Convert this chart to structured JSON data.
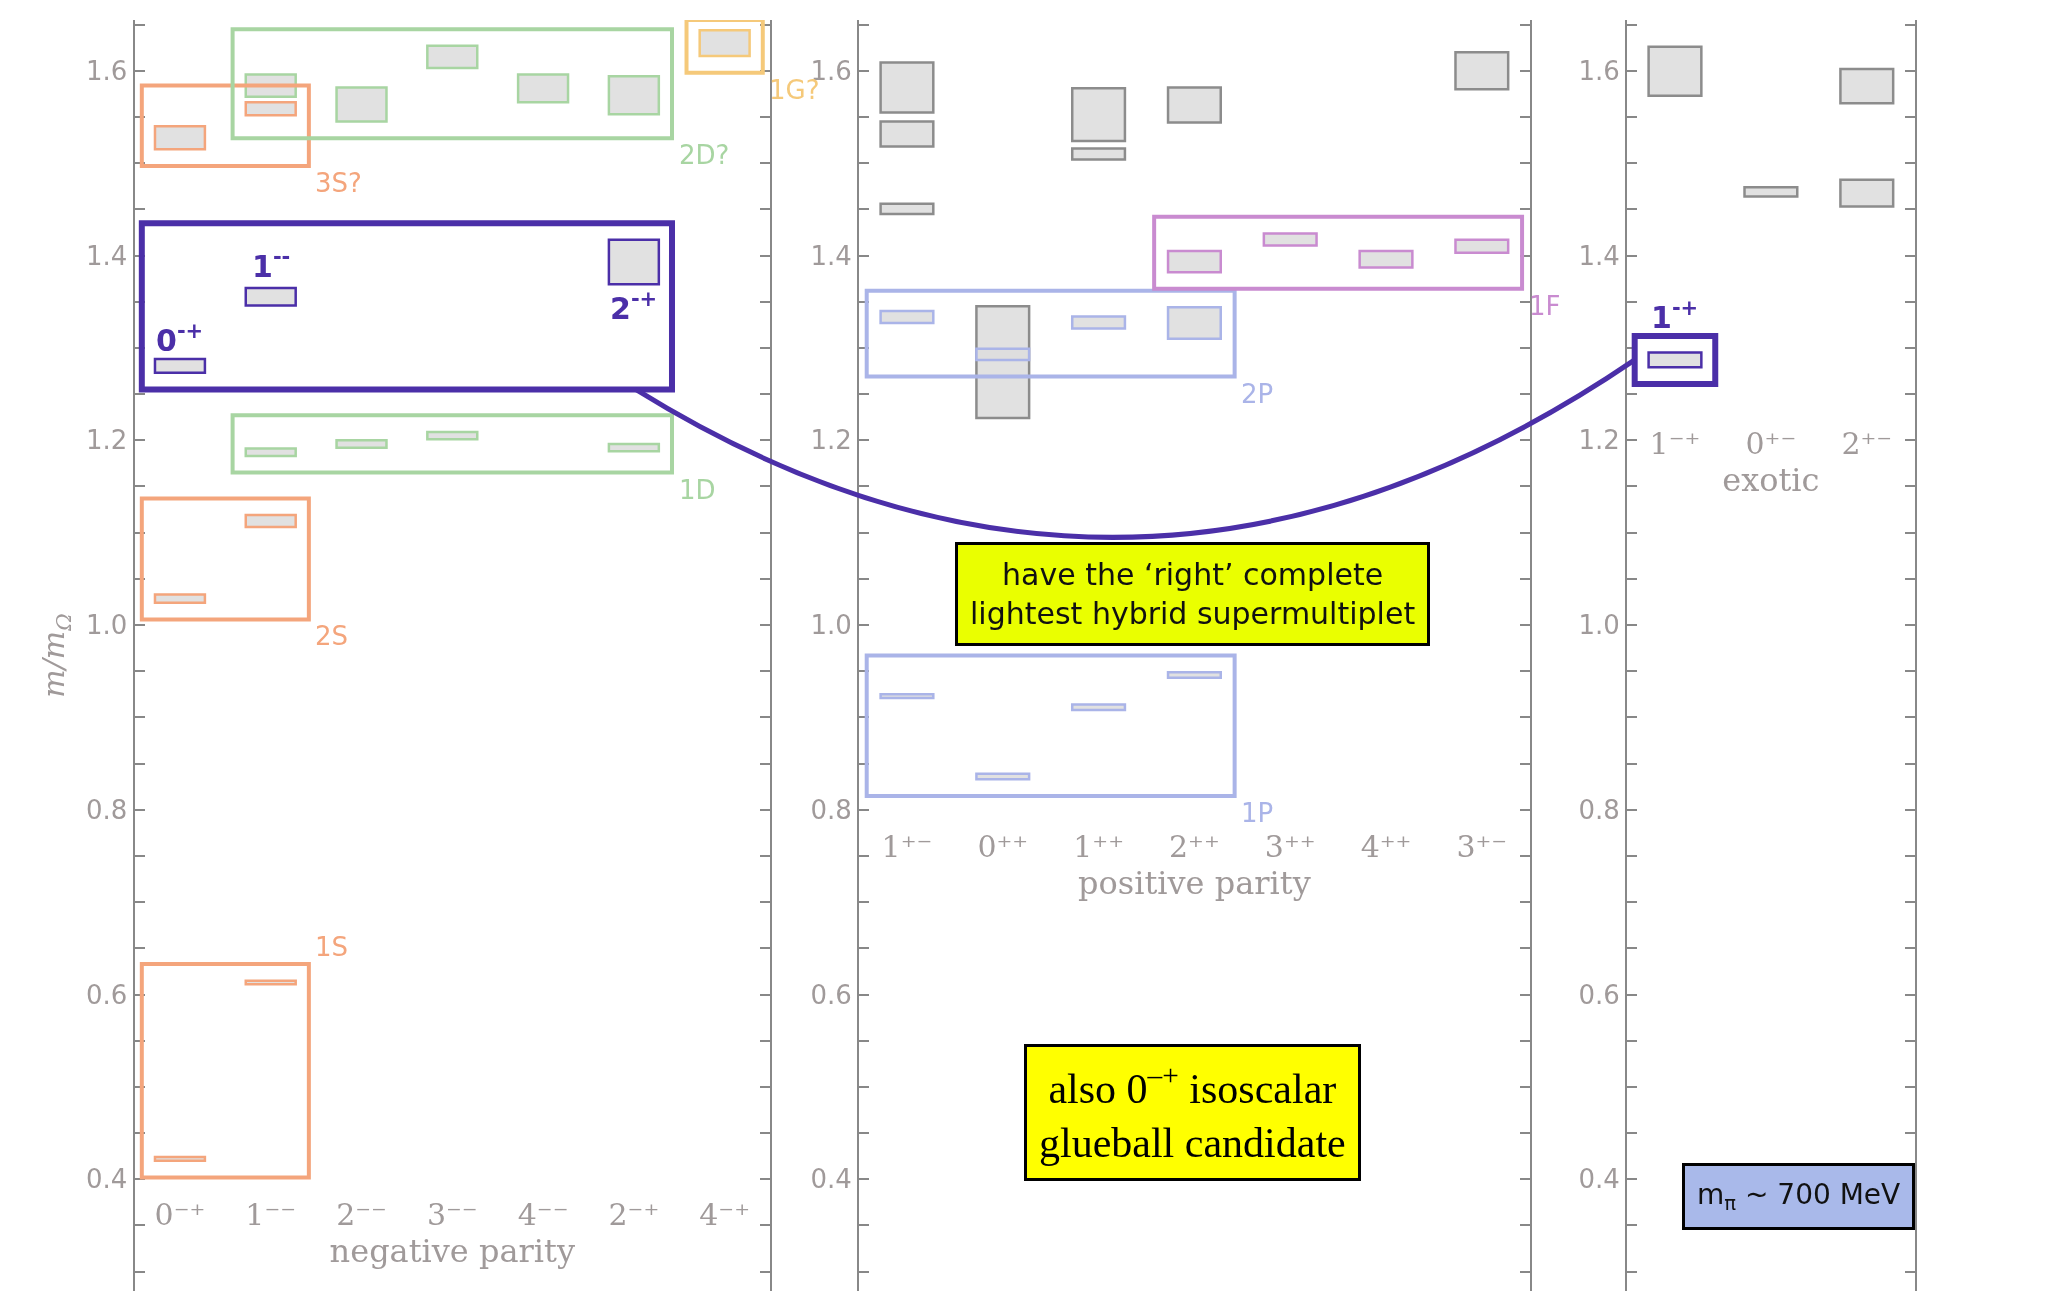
{
  "chart_data": [
    {
      "type": "bar",
      "ylabel": "m/m$_{Ω}$",
      "xlabel": "negative parity",
      "categories": [
        "0⁻⁺",
        "1⁻⁻",
        "2⁻⁻",
        "3⁻⁻",
        "4⁻⁻",
        "2⁻⁺",
        "4⁻⁺"
      ],
      "ylim": [
        0.279,
        1.655
      ],
      "yticks": [
        {
          "value": 0.3,
          "label": null
        },
        {
          "value": 0.35,
          "label": null
        },
        {
          "value": 0.4,
          "label": "0.4"
        },
        {
          "value": 0.45,
          "label": null
        },
        {
          "value": 0.5,
          "label": null
        },
        {
          "value": 0.55,
          "label": null
        },
        {
          "value": 0.6,
          "label": "0.6"
        },
        {
          "value": 0.65,
          "label": null
        },
        {
          "value": 0.7,
          "label": null
        },
        {
          "value": 0.75,
          "label": null
        },
        {
          "value": 0.8,
          "label": "0.8"
        },
        {
          "value": 0.85,
          "label": null
        },
        {
          "value": 0.9,
          "label": null
        },
        {
          "value": 0.95,
          "label": null
        },
        {
          "value": 1.0,
          "label": "1.0"
        },
        {
          "value": 1.05,
          "label": null
        },
        {
          "value": 1.1,
          "label": null
        },
        {
          "value": 1.15,
          "label": null
        },
        {
          "value": 1.2,
          "label": "1.2"
        },
        {
          "value": 1.25,
          "label": null
        },
        {
          "value": 1.3,
          "label": null
        },
        {
          "value": 1.35,
          "label": null
        },
        {
          "value": 1.4,
          "label": "1.4"
        },
        {
          "value": 1.45,
          "label": null
        },
        {
          "value": 1.5,
          "label": null
        },
        {
          "value": 1.55,
          "label": null
        },
        {
          "value": 1.6,
          "label": "1.6"
        },
        {
          "value": 1.65,
          "label": null
        }
      ],
      "series": [
        {
          "name": "1S",
          "color": "#f4a57c",
          "base": [
            0.42,
            0.611,
            null,
            null,
            null,
            null,
            null
          ],
          "values": [
            0.004,
            0.004,
            null,
            null,
            null,
            null,
            null
          ]
        },
        {
          "name": "2S",
          "color": "#f4a57c",
          "base": [
            1.024,
            1.106,
            null,
            null,
            null,
            null,
            null
          ],
          "values": [
            0.009,
            0.013,
            null,
            null,
            null,
            null,
            null
          ]
        },
        {
          "name": "1D",
          "color": "#a8d5a2",
          "base": [
            null,
            1.183,
            1.192,
            1.201,
            null,
            1.188,
            null
          ],
          "values": [
            null,
            0.008,
            0.008,
            0.008,
            null,
            0.008,
            null
          ]
        },
        {
          "color": "#4b2fa8",
          "base": [
            1.273,
            1.346,
            null,
            null,
            null,
            1.369,
            null
          ],
          "values": [
            0.015,
            0.019,
            null,
            null,
            null,
            0.048,
            null
          ]
        },
        {
          "name": "3S?",
          "color": "#f4a57c",
          "base": [
            1.515,
            1.552,
            null,
            null,
            null,
            null,
            null
          ],
          "values": [
            0.025,
            0.014,
            null,
            null,
            null,
            null,
            null
          ]
        },
        {
          "name": "2D?",
          "color": "#a8d5a2",
          "base": [
            null,
            1.572,
            1.545,
            1.603,
            1.566,
            1.553,
            null
          ],
          "values": [
            null,
            0.024,
            0.037,
            0.024,
            0.03,
            0.041,
            null
          ]
        },
        {
          "name": "1G?",
          "color": "#f5c97a",
          "base": [
            null,
            null,
            null,
            null,
            null,
            null,
            1.616
          ],
          "values": [
            null,
            null,
            null,
            null,
            null,
            null,
            0.028
          ]
        }
      ],
      "annotations": [
        "0$^{-+}$",
        "1$^{--}$",
        "2$^{-+}$"
      ]
    },
    {
      "type": "bar",
      "xlabel": "positive parity",
      "categories": [
        "1⁺⁻",
        "0⁺⁺",
        "1⁺⁺",
        "2⁺⁺",
        "3⁺⁺",
        "4⁺⁺",
        "3⁺⁻"
      ],
      "ylim": [
        0.279,
        1.655
      ],
      "yticks": [
        {
          "value": 0.3,
          "label": null
        },
        {
          "value": 0.35,
          "label": null
        },
        {
          "value": 0.4,
          "label": "0.4"
        },
        {
          "value": 0.45,
          "label": null
        },
        {
          "value": 0.5,
          "label": null
        },
        {
          "value": 0.55,
          "label": null
        },
        {
          "value": 0.6,
          "label": "0.6"
        },
        {
          "value": 0.65,
          "label": null
        },
        {
          "value": 0.7,
          "label": null
        },
        {
          "value": 0.75,
          "label": null
        },
        {
          "value": 0.8,
          "label": "0.8"
        },
        {
          "value": 0.85,
          "label": null
        },
        {
          "value": 0.9,
          "label": null
        },
        {
          "value": 0.95,
          "label": null
        },
        {
          "value": 1.0,
          "label": "1.0"
        },
        {
          "value": 1.05,
          "label": null
        },
        {
          "value": 1.1,
          "label": null
        },
        {
          "value": 1.15,
          "label": null
        },
        {
          "value": 1.2,
          "label": "1.2"
        },
        {
          "value": 1.25,
          "label": null
        },
        {
          "value": 1.3,
          "label": null
        },
        {
          "value": 1.35,
          "label": null
        },
        {
          "value": 1.4,
          "label": "1.4"
        },
        {
          "value": 1.45,
          "label": null
        },
        {
          "value": 1.5,
          "label": null
        },
        {
          "value": 1.55,
          "label": null
        },
        {
          "value": 1.6,
          "label": "1.6"
        },
        {
          "value": 1.65,
          "label": null
        }
      ],
      "series": [
        {
          "base": [
            1.555,
            null,
            1.524,
            1.544,
            null,
            null,
            1.58
          ],
          "values": [
            0.054,
            null,
            0.057,
            0.038,
            null,
            null,
            0.04
          ]
        },
        {
          "base": [
            1.518,
            1.224,
            1.504,
            null,
            null,
            null,
            null
          ],
          "values": [
            0.027,
            0.121,
            0.012,
            null,
            null,
            null,
            null
          ]
        },
        {
          "base": [
            1.445,
            null,
            null,
            null,
            null,
            null,
            null
          ],
          "values": [
            0.011,
            null,
            null,
            null,
            null,
            null,
            null
          ]
        },
        {
          "name": "1P",
          "color": "#aab4e8",
          "base": [
            0.921,
            0.833,
            0.908,
            0.943,
            null,
            null,
            null
          ],
          "values": [
            0.004,
            0.006,
            0.006,
            0.006,
            null,
            null,
            null
          ]
        },
        {
          "name": "2P",
          "color": "#aab4e8",
          "base": [
            1.327,
            1.287,
            1.321,
            1.31,
            null,
            null,
            null
          ],
          "values": [
            0.013,
            0.012,
            0.013,
            0.034,
            null,
            null,
            null
          ]
        },
        {
          "name": "1F",
          "color": "#c98bd0",
          "base": [
            null,
            null,
            null,
            1.382,
            1.411,
            1.387,
            1.403
          ],
          "values": [
            null,
            null,
            null,
            0.023,
            0.013,
            0.018,
            0.014
          ]
        }
      ],
      "annotations": [
        "have the ‘right’ complete\nlightest hybrid supermultiplet",
        "also 0$^{–+}$ isoscalar\nglueball candidate"
      ]
    },
    {
      "type": "bar",
      "xlabel": "exotic",
      "categories": [
        "1⁻⁺",
        "0⁺⁻",
        "2⁺⁻"
      ],
      "ylim": [
        0.279,
        1.655
      ],
      "yticks": [
        {
          "value": 0.3,
          "label": null
        },
        {
          "value": 0.35,
          "label": null
        },
        {
          "value": 0.4,
          "label": "0.4"
        },
        {
          "value": 0.45,
          "label": null
        },
        {
          "value": 0.5,
          "label": null
        },
        {
          "value": 0.55,
          "label": null
        },
        {
          "value": 0.6,
          "label": "0.6"
        },
        {
          "value": 0.65,
          "label": null
        },
        {
          "value": 0.7,
          "label": null
        },
        {
          "value": 0.75,
          "label": null
        },
        {
          "value": 0.8,
          "label": "0.8"
        },
        {
          "value": 0.85,
          "label": null
        },
        {
          "value": 0.9,
          "label": null
        },
        {
          "value": 0.95,
          "label": null
        },
        {
          "value": 1.0,
          "label": "1.0"
        },
        {
          "value": 1.05,
          "label": null
        },
        {
          "value": 1.1,
          "label": null
        },
        {
          "value": 1.15,
          "label": null
        },
        {
          "value": 1.2,
          "label": "1.2"
        },
        {
          "value": 1.25,
          "label": null
        },
        {
          "value": 1.3,
          "label": null
        },
        {
          "value": 1.35,
          "label": null
        },
        {
          "value": 1.4,
          "label": "1.4"
        },
        {
          "value": 1.45,
          "label": null
        },
        {
          "value": 1.5,
          "label": null
        },
        {
          "value": 1.55,
          "label": null
        },
        {
          "value": 1.6,
          "label": "1.6"
        },
        {
          "value": 1.65,
          "label": null
        }
      ],
      "series": [
        {
          "base": [
            1.573,
            null,
            1.565
          ],
          "values": [
            0.053,
            null,
            0.037
          ]
        },
        {
          "base": [
            null,
            1.464,
            1.453
          ],
          "values": [
            null,
            0.01,
            0.029
          ]
        },
        {
          "color": "#4b2fa8",
          "base": [
            1.279,
            null,
            null
          ],
          "values": [
            0.016,
            null,
            null
          ]
        }
      ],
      "annotations": [
        "1$^{-+}$",
        "m$_{π}$ ~ 700 MeV"
      ]
    }
  ]
}
